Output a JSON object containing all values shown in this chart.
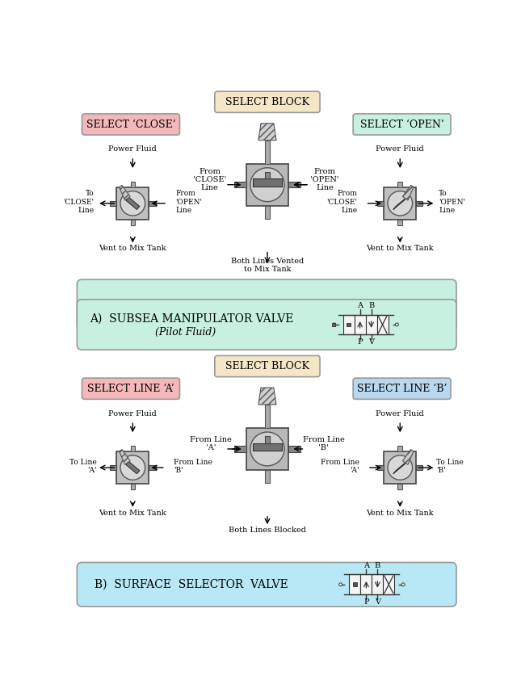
{
  "bg_color": "#ffffff",
  "select_block_color": "#f5e6c8",
  "select_close_color": "#f5b8b8",
  "select_open_color": "#c8f0e0",
  "select_lineA_color": "#f5b8b8",
  "select_lineB_color": "#b8d8f0",
  "bottom_box_A_color": "#c8f0e0",
  "bottom_box_B_color": "#b8e8f5",
  "section_A_title": "A)  SUBSEA MANIPULATOR VALVE",
  "section_A_subtitle": "(Pilot Fluid)",
  "section_B_title": "B)  SURFACE  SELECTOR  VALVE",
  "select_block_text": "SELECT BLOCK",
  "select_close_text": "SELECT ‘CLOSE’",
  "select_open_text": "SELECT ‘OPEN’",
  "select_lineA_text": "SELECT LINE ‘A’",
  "select_lineB_text": "SELECT LINE ‘B’",
  "valve_body_color": "#c8c8c8",
  "valve_dark": "#555555",
  "valve_mid": "#888888",
  "valve_light": "#e0e0e0"
}
